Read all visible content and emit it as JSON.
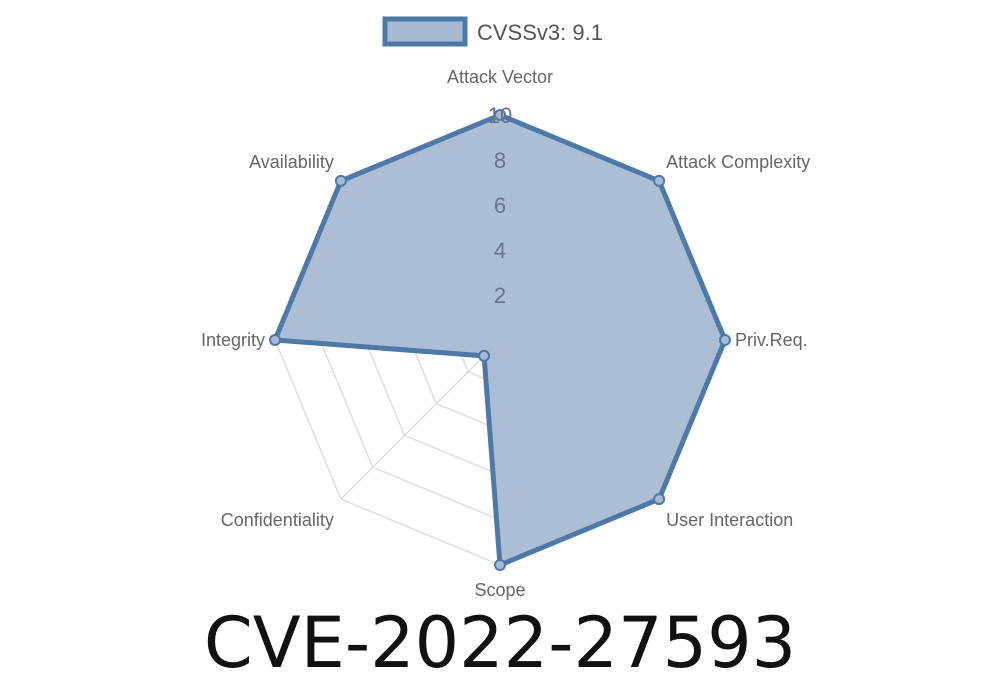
{
  "chart_data": {
    "type": "radar",
    "categories": [
      "Attack Vector",
      "Attack Complexity",
      "Priv.Req.",
      "User Interaction",
      "Scope",
      "Confidentiality",
      "Integrity",
      "Availability"
    ],
    "series": [
      {
        "name": "CVSSv3: 9.1",
        "values": [
          10,
          10,
          10,
          10,
          10,
          1,
          10,
          10
        ]
      }
    ],
    "rlim": [
      0,
      10
    ],
    "ticks": [
      "2",
      "4",
      "6",
      "8",
      "10"
    ],
    "legend_position": "top",
    "colors": {
      "fill": "#a6bad4",
      "stroke": "#4e79a7",
      "grid": "#dddddd",
      "label": "#666666"
    }
  },
  "title": "CVE-2022-27593"
}
